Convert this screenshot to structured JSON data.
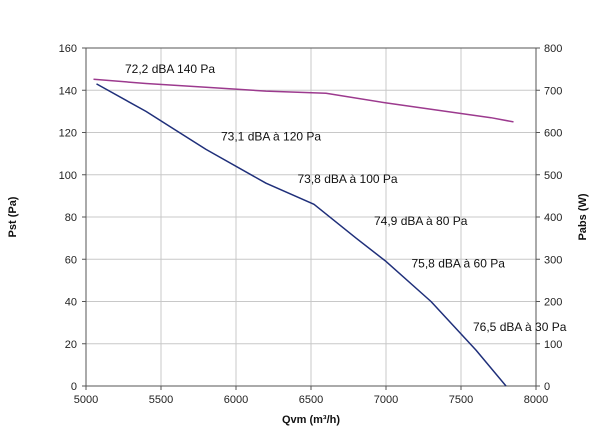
{
  "chart_data": {
    "type": "line",
    "xlabel": "Qvm (m³/h)",
    "ylabel": "Pst  (Pa)",
    "y2label": "Pabs (W)",
    "xlim": [
      5000,
      8000
    ],
    "ylim": [
      0,
      160
    ],
    "y2lim": [
      0,
      800
    ],
    "x_ticks": [
      "5000",
      "5500",
      "6000",
      "6500",
      "7000",
      "7500",
      "8000"
    ],
    "y_ticks": [
      "0",
      "20",
      "40",
      "60",
      "80",
      "100",
      "120",
      "140",
      "160"
    ],
    "y2_ticks": [
      "0",
      "100",
      "200",
      "300",
      "400",
      "500",
      "600",
      "700",
      "800"
    ],
    "grid": true,
    "series": [
      {
        "axis": "left",
        "color": "#1f2f7a",
        "x": [
          5070,
          5400,
          5800,
          6200,
          6520,
          6800,
          7000,
          7300,
          7600,
          7800
        ],
        "y": [
          143,
          130,
          112,
          96,
          86,
          70,
          59,
          40,
          17,
          0
        ]
      },
      {
        "axis": "right",
        "color": "#9c3a8e",
        "x": [
          5050,
          5400,
          5800,
          6200,
          6600,
          7000,
          7400,
          7700,
          7850
        ],
        "y": [
          726,
          716,
          707,
          698,
          693,
          670,
          650,
          635,
          625
        ]
      }
    ],
    "annotations": [
      {
        "text": "72,2 dBA 140 Pa",
        "x": 5260,
        "y": 150
      },
      {
        "text": "73,1 dBA à 120 Pa",
        "x": 5900,
        "y": 118
      },
      {
        "text": "73,8 dBA à 100 Pa",
        "x": 6410,
        "y": 98
      },
      {
        "text": "74,9 dBA à 80 Pa",
        "x": 6920,
        "y": 78
      },
      {
        "text": "75,8 dBA à 60 Pa",
        "x": 7170,
        "y": 58
      },
      {
        "text": "76,5 dBA à 30 Pa",
        "x": 7580,
        "y": 28
      }
    ]
  }
}
